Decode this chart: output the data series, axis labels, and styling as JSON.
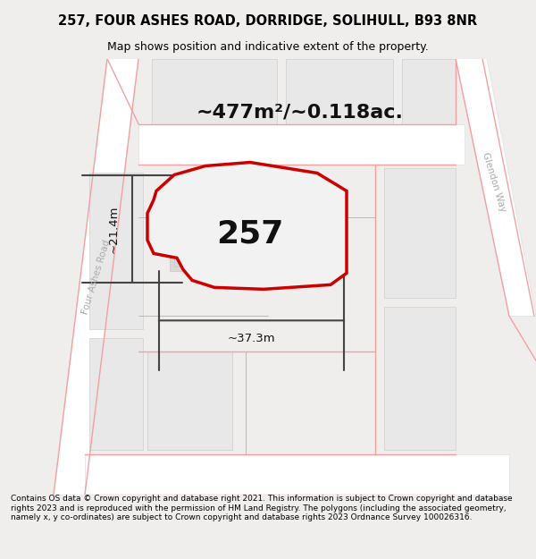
{
  "title_line1": "257, FOUR ASHES ROAD, DORRIDGE, SOLIHULL, B93 8NR",
  "title_line2": "Map shows position and indicative extent of the property.",
  "area_text": "~477m²/~0.118ac.",
  "label_257": "257",
  "dim_height": "~21.4m",
  "dim_width": "~37.3m",
  "road_label": "Four Ashes Road",
  "road_label2": "Glendon Way",
  "footer_text": "Contains OS data © Crown copyright and database right 2021. This information is subject to Crown copyright and database rights 2023 and is reproduced with the permission of HM Land Registry. The polygons (including the associated geometry, namely x, y co-ordinates) are subject to Crown copyright and database rights 2023 Ordnance Survey 100026316.",
  "bg_color": "#f5f0f0",
  "map_bg": "#ffffff",
  "road_fill": "#ffffff",
  "plot_fill": "#e8e8e8",
  "red_border": "#cc0000",
  "pink_line": "#f4a0a0",
  "gray_line": "#c8c8c8",
  "dim_line_color": "#444444"
}
